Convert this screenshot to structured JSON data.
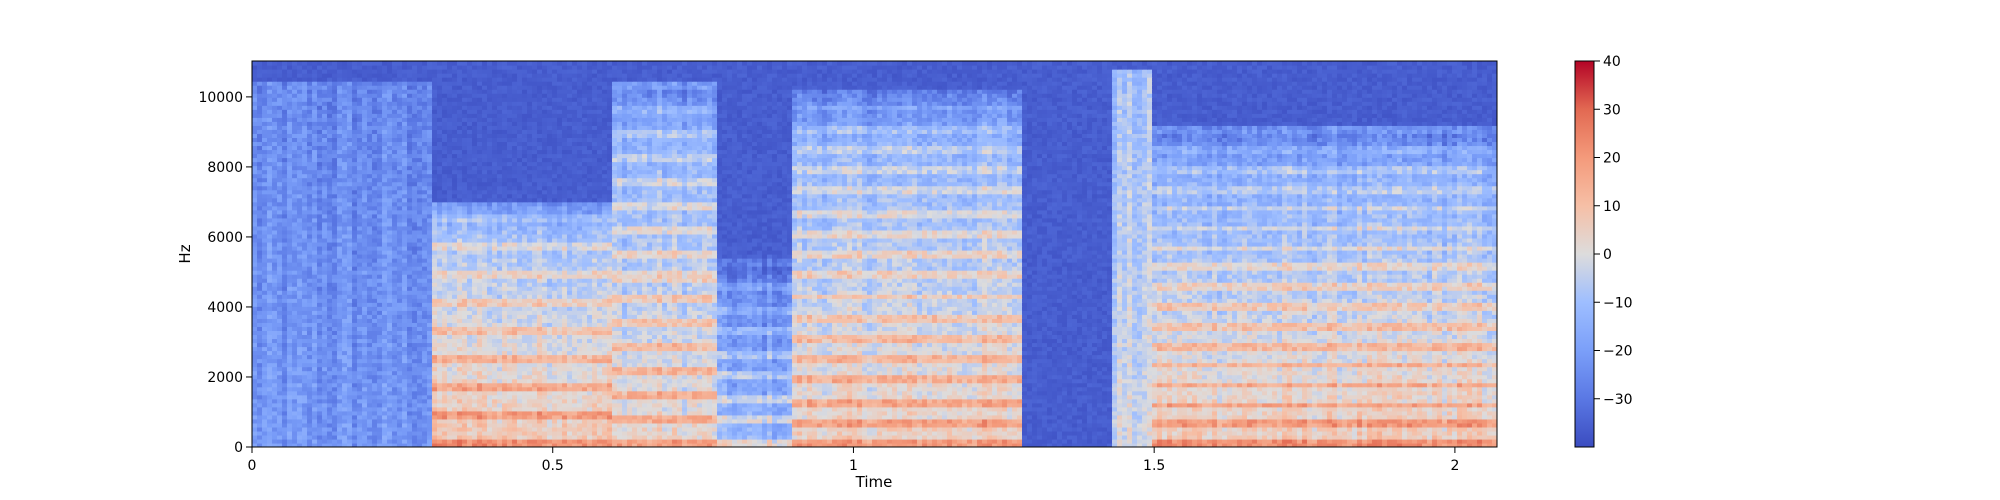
{
  "chart_data": {
    "type": "heatmap",
    "title": "",
    "xlabel": "Time",
    "ylabel": "Hz",
    "xlim": [
      0,
      2.07
    ],
    "ylim": [
      0,
      11025
    ],
    "xticks": [
      {
        "value": 0,
        "label": "0"
      },
      {
        "value": 0.5,
        "label": "0.5"
      },
      {
        "value": 1,
        "label": "1"
      },
      {
        "value": 1.5,
        "label": "1.5"
      },
      {
        "value": 2,
        "label": "2"
      }
    ],
    "yticks": [
      {
        "value": 0,
        "label": "0"
      },
      {
        "value": 2000,
        "label": "2000"
      },
      {
        "value": 4000,
        "label": "4000"
      },
      {
        "value": 6000,
        "label": "6000"
      },
      {
        "value": 8000,
        "label": "8000"
      },
      {
        "value": 10000,
        "label": "10000"
      }
    ],
    "colorbar": {
      "colormap": "coolwarm",
      "range": [
        -40,
        40
      ],
      "ticks": [
        {
          "value": 40,
          "label": "40"
        },
        {
          "value": 30,
          "label": "30"
        },
        {
          "value": 20,
          "label": "20"
        },
        {
          "value": 10,
          "label": "10"
        },
        {
          "value": 0,
          "label": "0"
        },
        {
          "value": -10,
          "label": "−10"
        },
        {
          "value": -20,
          "label": "−20"
        },
        {
          "value": -30,
          "label": "−30"
        }
      ]
    },
    "segments": [
      {
        "t_start": 0.0,
        "t_end": 0.3,
        "f_max": 10500,
        "level_low": -22,
        "level_high": -26,
        "harmonic": false
      },
      {
        "t_start": 0.3,
        "t_end": 0.6,
        "f_max": 7000,
        "level_low": 15,
        "level_high": -8,
        "harmonic": true,
        "f0": 200
      },
      {
        "t_start": 0.6,
        "t_end": 0.77,
        "f_max": 10500,
        "level_low": 10,
        "level_high": -14,
        "harmonic": true,
        "f0": 170
      },
      {
        "t_start": 0.77,
        "t_end": 0.9,
        "f_max": 5500,
        "level_low": -6,
        "level_high": -26,
        "harmonic": true,
        "f0": 160
      },
      {
        "t_start": 0.9,
        "t_end": 1.28,
        "f_max": 10200,
        "level_low": 12,
        "level_high": -14,
        "harmonic": true,
        "f0": 150
      },
      {
        "t_start": 1.43,
        "t_end": 1.5,
        "f_max": 10800,
        "level_low": -2,
        "level_high": -10,
        "harmonic": false
      },
      {
        "t_start": 1.5,
        "t_end": 2.07,
        "f_max": 9200,
        "level_low": 14,
        "level_high": -16,
        "harmonic": true,
        "f0": 140
      }
    ],
    "background_level": -36,
    "grid": false
  }
}
